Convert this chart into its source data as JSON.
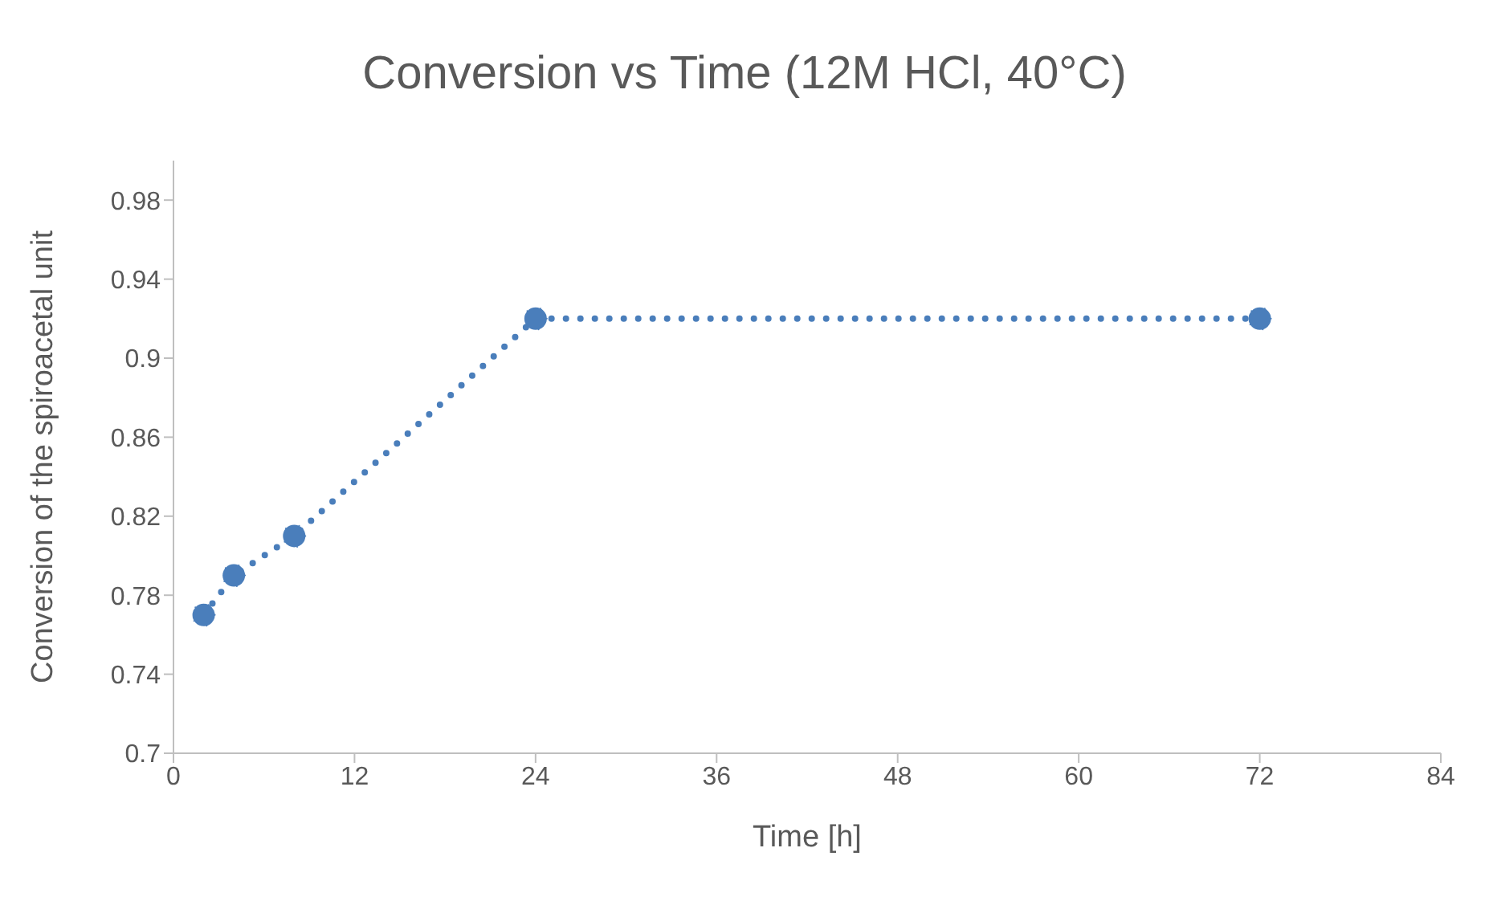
{
  "chart_data": {
    "type": "line",
    "title": "Conversion vs Time (12M HCl, 40°C)",
    "xlabel": "Time [h]",
    "ylabel": "Conversion of the spiroacetal unit",
    "x": [
      2,
      4,
      8,
      24,
      72
    ],
    "series": [
      {
        "color": "#4a7ebb",
        "values": [
          0.77,
          0.79,
          0.81,
          0.92,
          0.92
        ]
      }
    ],
    "xlim": [
      0,
      84
    ],
    "xticks": [
      0,
      12,
      24,
      36,
      48,
      60,
      72,
      84
    ],
    "ylim": [
      0.7,
      1.0
    ],
    "yticks": [
      0.7,
      0.74,
      0.78,
      0.82,
      0.86,
      0.9,
      0.94,
      0.98
    ],
    "grid": false,
    "legend": false,
    "marker": "circle",
    "line_style": "dotted"
  }
}
